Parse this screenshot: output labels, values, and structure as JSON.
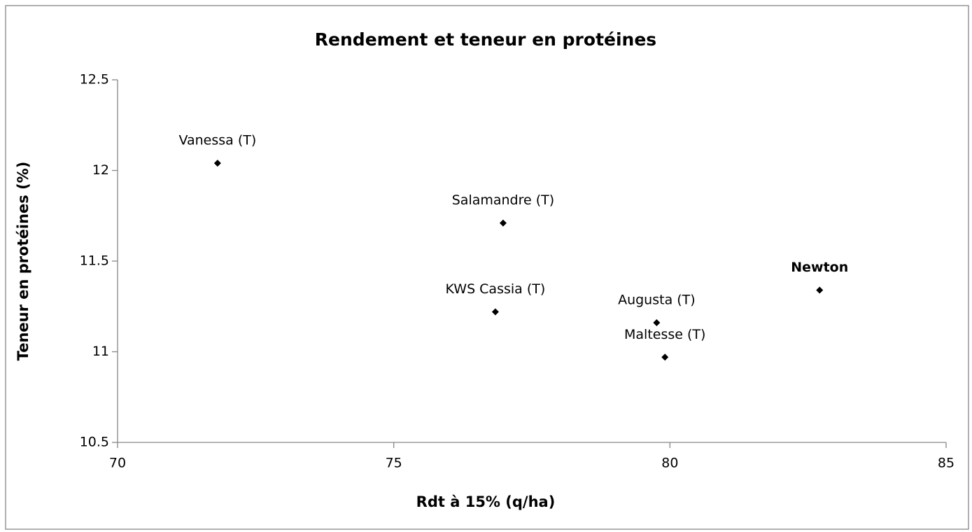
{
  "chart_data": {
    "type": "scatter",
    "title": "Rendement et teneur en protéines",
    "xlabel": "Rdt à 15% (q/ha)",
    "ylabel": "Teneur en protéines (%)",
    "labels": [
      "Vanessa (T)",
      "Salamandre (T)",
      "KWS Cassia (T)",
      "Augusta (T)",
      "Maltesse (T)",
      "Newton"
    ],
    "label_bold": [
      false,
      false,
      false,
      false,
      false,
      true
    ],
    "x": [
      71.81,
      76.98,
      76.84,
      79.76,
      79.91,
      82.71
    ],
    "y": [
      12.04,
      11.71,
      11.22,
      11.16,
      10.97,
      11.34
    ],
    "color": "#000000",
    "xlim": [
      70,
      85
    ],
    "xticks": [
      70,
      75,
      80,
      85
    ],
    "ylim": [
      10.5,
      12.5
    ],
    "yticks": [
      10.5,
      11,
      11.5,
      12,
      12.5
    ],
    "grid": false
  }
}
